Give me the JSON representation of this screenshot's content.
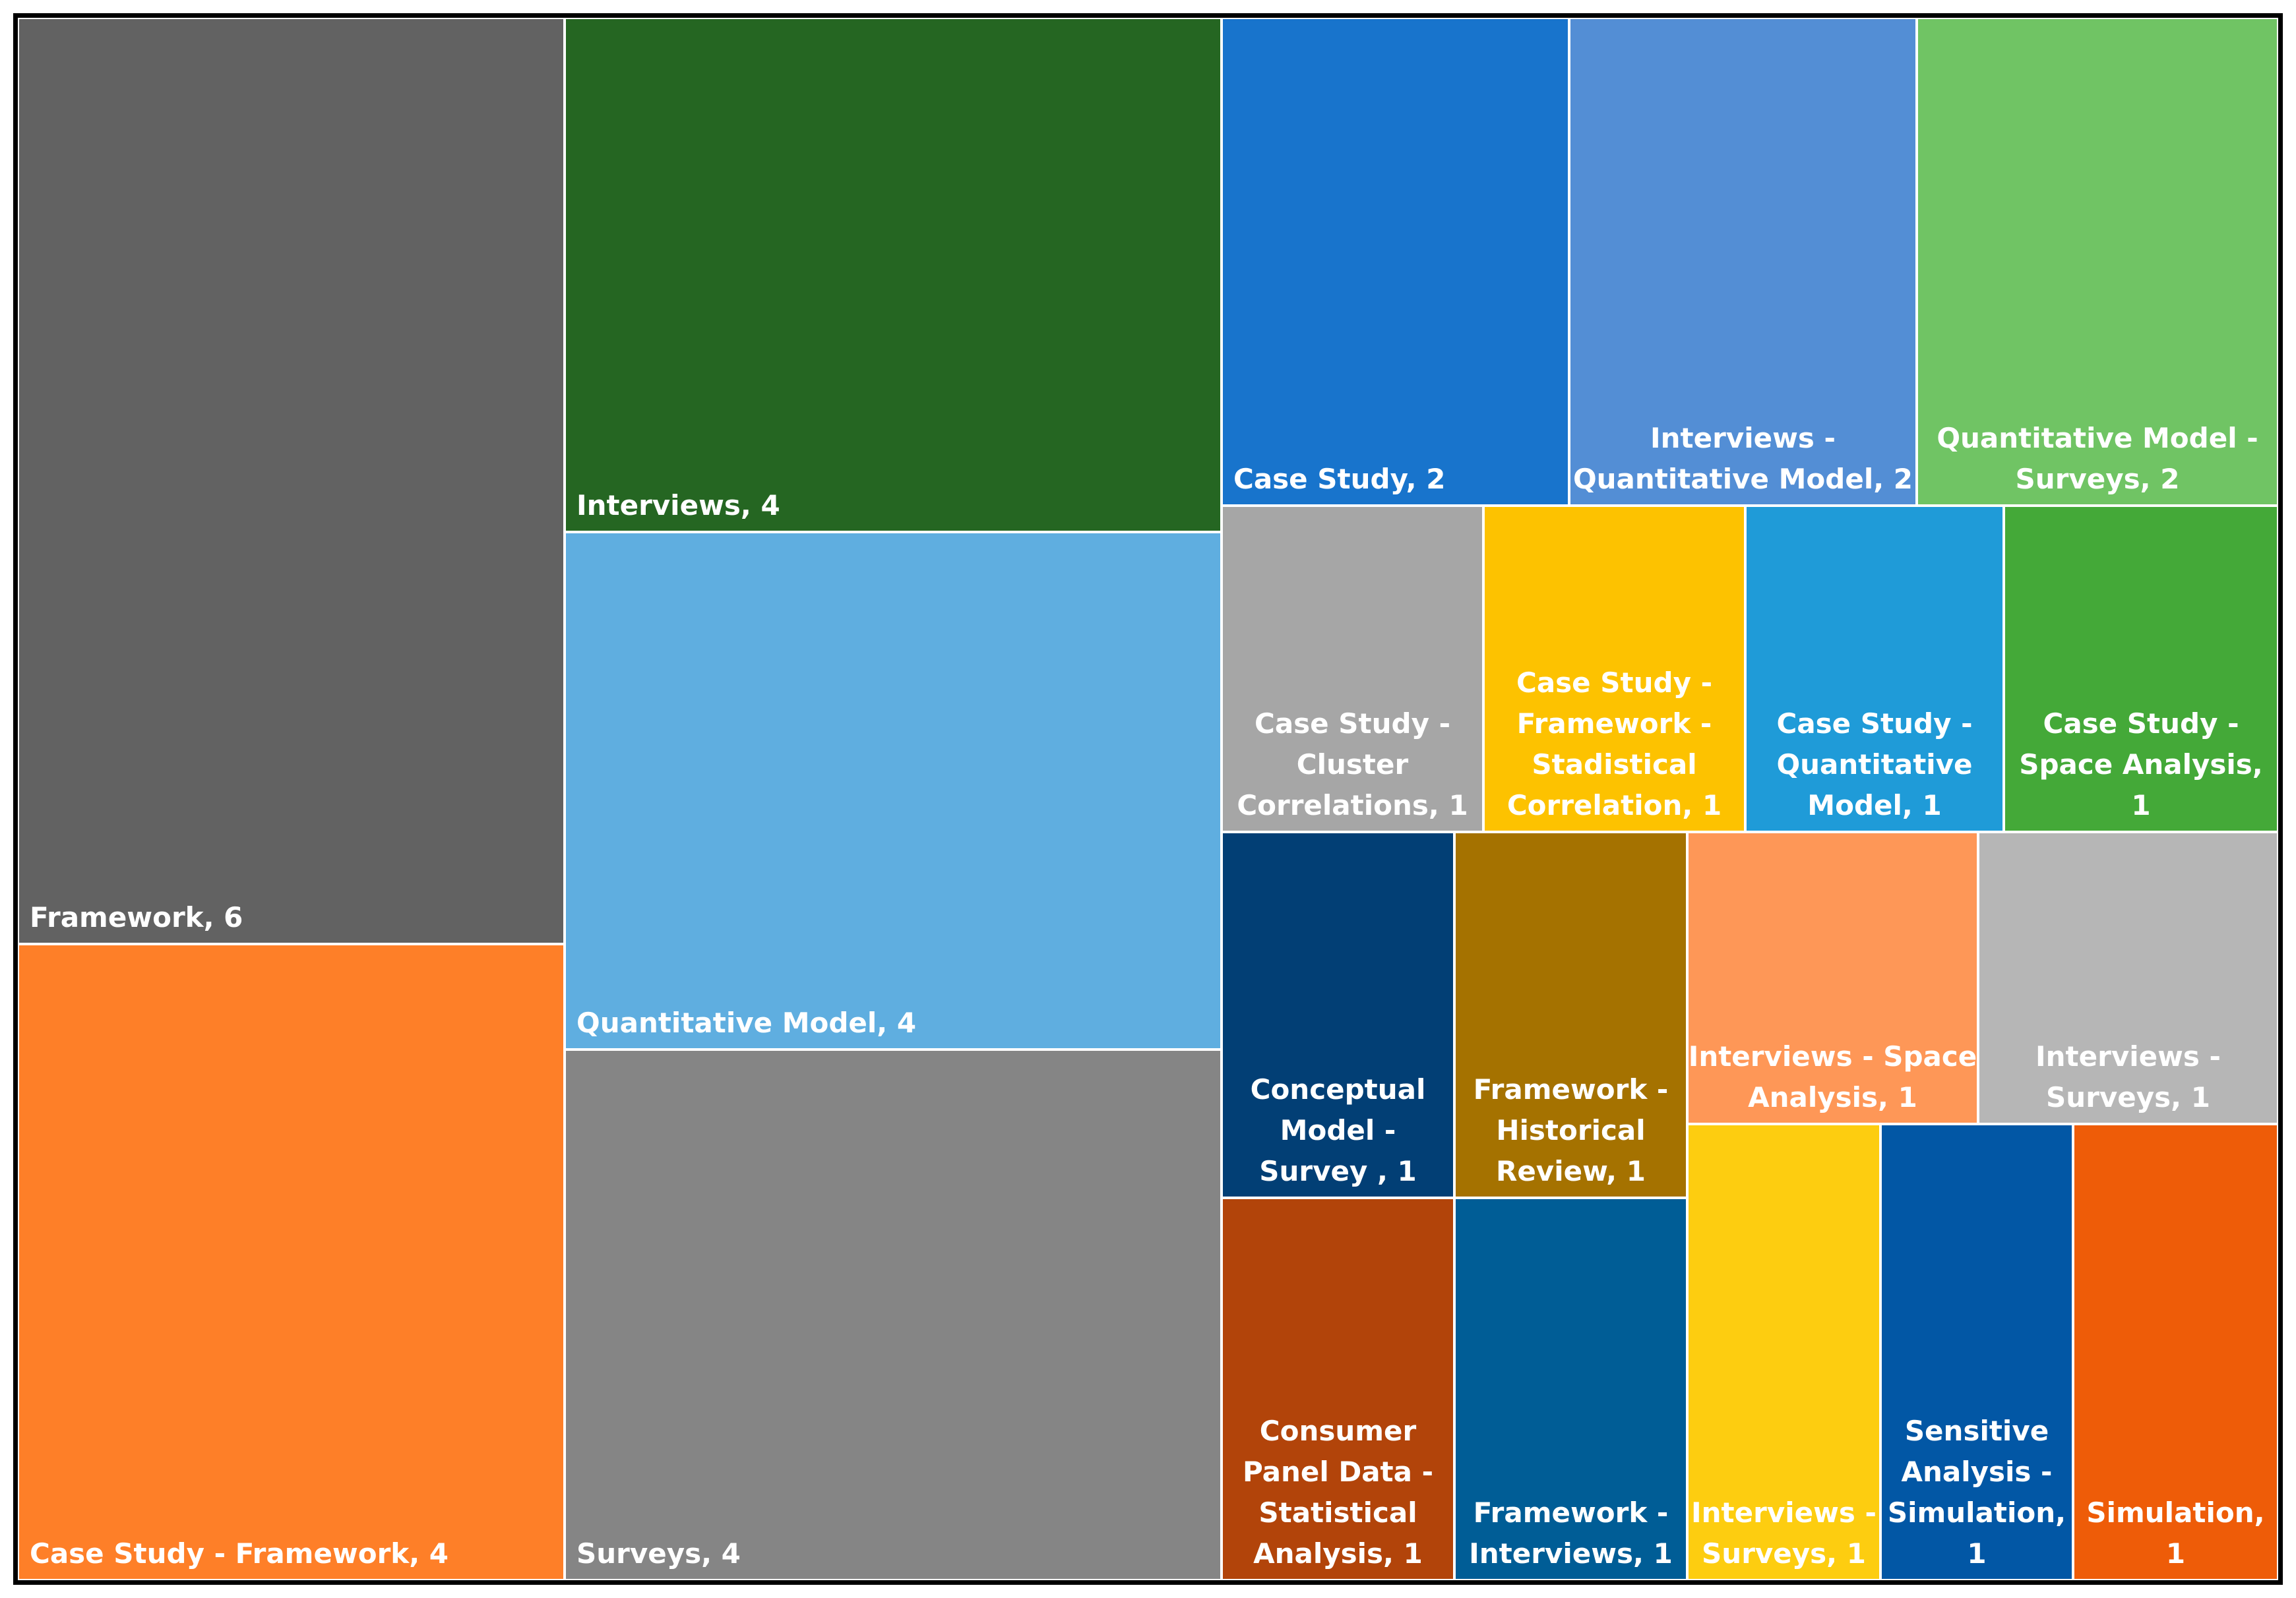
{
  "chart_data": {
    "type": "treemap",
    "title": "",
    "tiles": [
      {
        "label": [
          "Framework, 6"
        ],
        "category": "Framework",
        "value": 6,
        "color": "#626262",
        "anchor": "bottom-left"
      },
      {
        "label": [
          "Case Study - Framework, 4"
        ],
        "category": "Case Study - Framework",
        "value": 4,
        "color": "#fe7f28",
        "anchor": "bottom-left"
      },
      {
        "label": [
          "Interviews, 4"
        ],
        "category": "Interviews",
        "value": 4,
        "color": "#256622",
        "anchor": "bottom-left"
      },
      {
        "label": [
          "Quantitative Model, 4"
        ],
        "category": "Quantitative Model",
        "value": 4,
        "color": "#5faee0",
        "anchor": "bottom-left"
      },
      {
        "label": [
          "Surveys, 4"
        ],
        "category": "Surveys",
        "value": 4,
        "color": "#858585",
        "anchor": "bottom-left"
      },
      {
        "label": [
          "Case Study, 2"
        ],
        "category": "Case Study",
        "value": 2,
        "color": "#1874cc",
        "anchor": "bottom-left"
      },
      {
        "label": [
          "Interviews -",
          "Quantitative Model, 2"
        ],
        "category": "Interviews - Quantitative Model",
        "value": 2,
        "color": "#538ed5",
        "anchor": "bottom-center"
      },
      {
        "label": [
          "Quantitative Model -",
          "Surveys, 2"
        ],
        "category": "Quantitative Model - Surveys",
        "value": 2,
        "color": "#70c464",
        "anchor": "bottom-center"
      },
      {
        "label": [
          "Case Study -",
          "Cluster",
          "Correlations, 1"
        ],
        "category": "Case Study - Cluster Correlations",
        "value": 1,
        "color": "#a6a6a6",
        "anchor": "bottom-center"
      },
      {
        "label": [
          "Case Study -",
          "Framework -",
          "Stadistical",
          "Correlation, 1"
        ],
        "category": "Case Study - Framework - Stadistical Correlation",
        "value": 1,
        "color": "#fdc200",
        "anchor": "bottom-center"
      },
      {
        "label": [
          "Case Study -",
          "Quantitative",
          "Model, 1"
        ],
        "category": "Case Study - Quantitative Model",
        "value": 1,
        "color": "#1f9bd8",
        "anchor": "bottom-center"
      },
      {
        "label": [
          "Case Study -",
          "Space Analysis,",
          "1"
        ],
        "category": "Case Study - Space Analysis",
        "value": 1,
        "color": "#44a938",
        "anchor": "bottom-center"
      },
      {
        "label": [
          "Conceptual",
          "Model -",
          "Survey , 1"
        ],
        "category": "Conceptual Model - Survey",
        "value": 1,
        "color": "#023f75",
        "anchor": "bottom-center"
      },
      {
        "label": [
          "Framework -",
          "Historical",
          "Review, 1"
        ],
        "category": "Framework - Historical Review",
        "value": 1,
        "color": "#a57200",
        "anchor": "bottom-center"
      },
      {
        "label": [
          "Interviews - Space",
          "Analysis, 1"
        ],
        "category": "Interviews - Space Analysis",
        "value": 1,
        "color": "#fe9757",
        "anchor": "bottom-center"
      },
      {
        "label": [
          "Interviews -",
          "Surveys, 1"
        ],
        "category": "Interviews - Surveys",
        "value": 1,
        "color": "#b6b6b6",
        "anchor": "bottom-center"
      },
      {
        "label": [
          "Consumer",
          "Panel Data -",
          "Statistical",
          "Analysis, 1"
        ],
        "category": "Consumer Panel Data - Statistical Analysis",
        "value": 1,
        "color": "#b2440a",
        "anchor": "bottom-center"
      },
      {
        "label": [
          "Framework -",
          "Interviews, 1"
        ],
        "category": "Framework - Interviews",
        "value": 1,
        "color": "#005d96",
        "anchor": "bottom-center"
      },
      {
        "label": [
          "Interviews -",
          "Surveys, 1"
        ],
        "category": "Interviews - Surveys",
        "value": 1,
        "color": "#fdcd10",
        "anchor": "bottom-center"
      },
      {
        "label": [
          "Sensitive",
          "Analysis -",
          "Simulation,",
          "1"
        ],
        "category": "Sensitive Analysis - Simulation",
        "value": 1,
        "color": "#0257a5",
        "anchor": "bottom-center"
      },
      {
        "label": [
          "Simulation,",
          "1"
        ],
        "category": "Simulation",
        "value": 1,
        "color": "#ee5c08",
        "anchor": "bottom-center"
      }
    ]
  }
}
